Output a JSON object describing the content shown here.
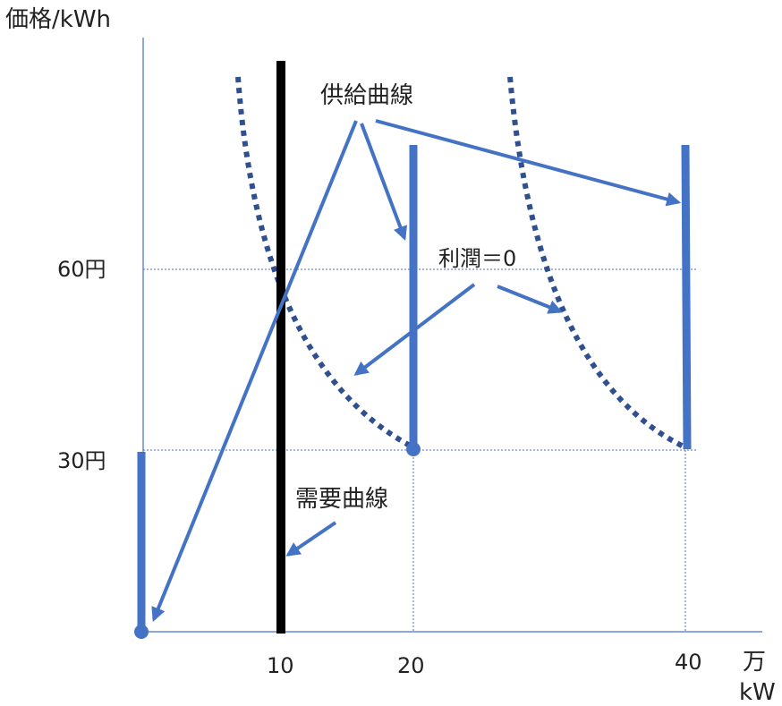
{
  "title": "",
  "colors": {
    "blue": "#4472c4",
    "navy": "#2f4f8f",
    "black": "#000000",
    "axis": "#4472c4",
    "text": "#222222"
  },
  "y_axis": {
    "label": "価格/kWh",
    "ticks": [
      "60円",
      "30円"
    ]
  },
  "x_axis": {
    "unit_top": "万",
    "unit_bottom": "kW",
    "ticks": [
      "10",
      "20",
      "40"
    ]
  },
  "annotations": {
    "supply": "供給曲線",
    "profit": "利潤＝0",
    "demand": "需要曲線"
  }
}
